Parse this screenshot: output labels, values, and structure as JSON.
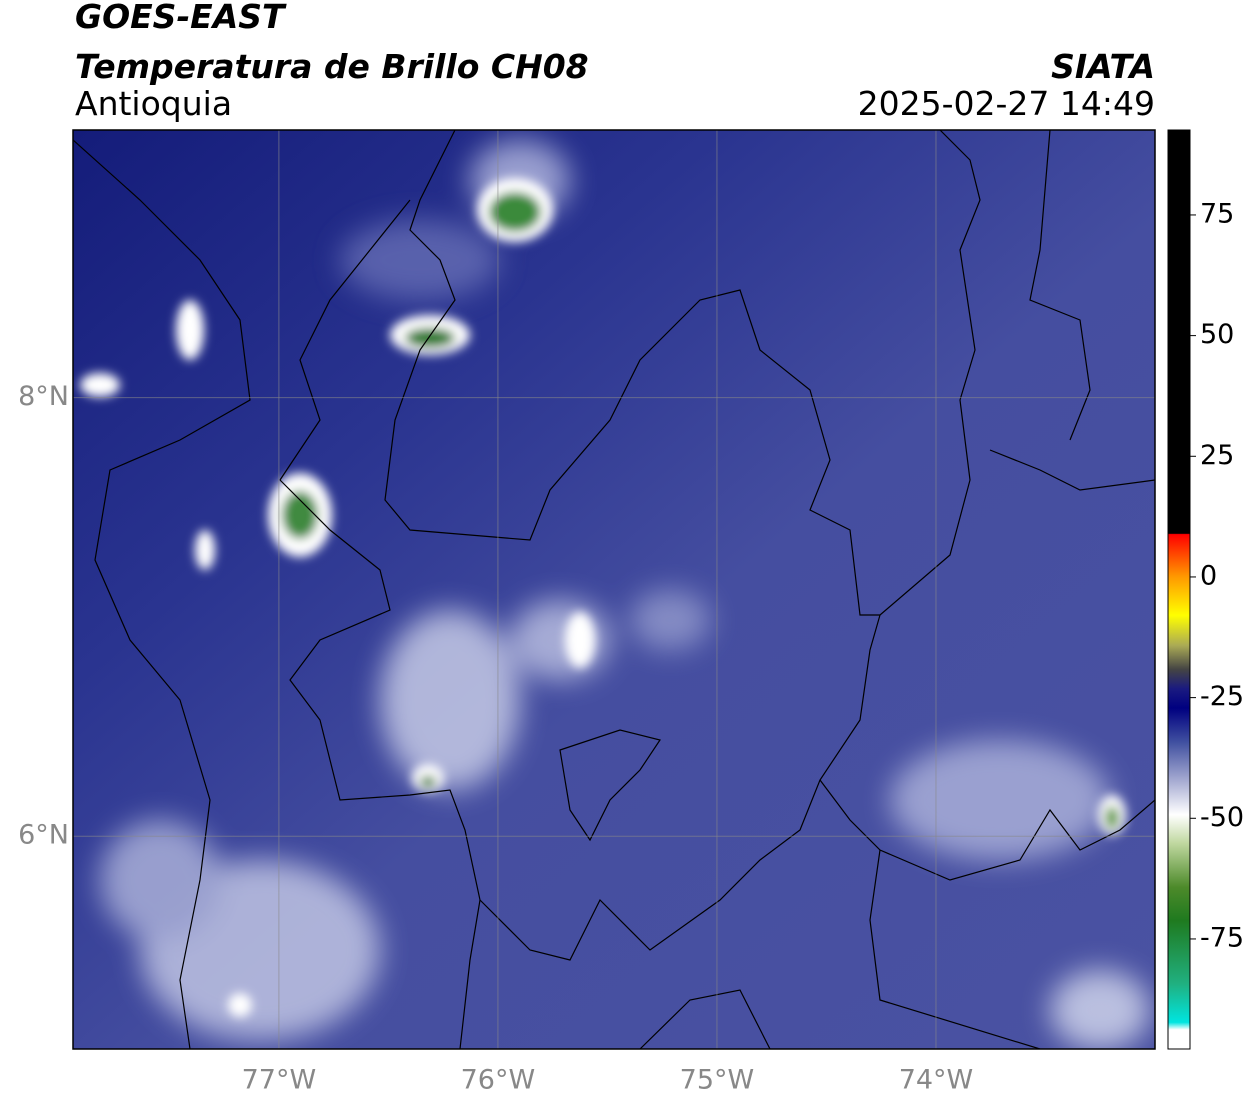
{
  "header": {
    "satellite": "GOES-EAST",
    "product": "Temperatura de Brillo CH08",
    "region": "Antioquia",
    "agency": "SIATA",
    "timestamp": "2025-02-27 14:49"
  },
  "map": {
    "xlim": [
      -77.94,
      -73.0
    ],
    "ylim": [
      5.03,
      9.22
    ],
    "xticks": [
      {
        "value": -77,
        "label": "77°W"
      },
      {
        "value": -76,
        "label": "76°W"
      },
      {
        "value": -75,
        "label": "75°W"
      },
      {
        "value": -74,
        "label": "74°W"
      }
    ],
    "yticks": [
      {
        "value": 8,
        "label": "8°N"
      },
      {
        "value": 6,
        "label": "6°N"
      }
    ],
    "grid": true
  },
  "colorbar": {
    "lim": [
      -97.8,
      92.6
    ],
    "ticks": [
      75,
      50,
      25,
      0,
      -25,
      -50,
      -75
    ]
  }
}
